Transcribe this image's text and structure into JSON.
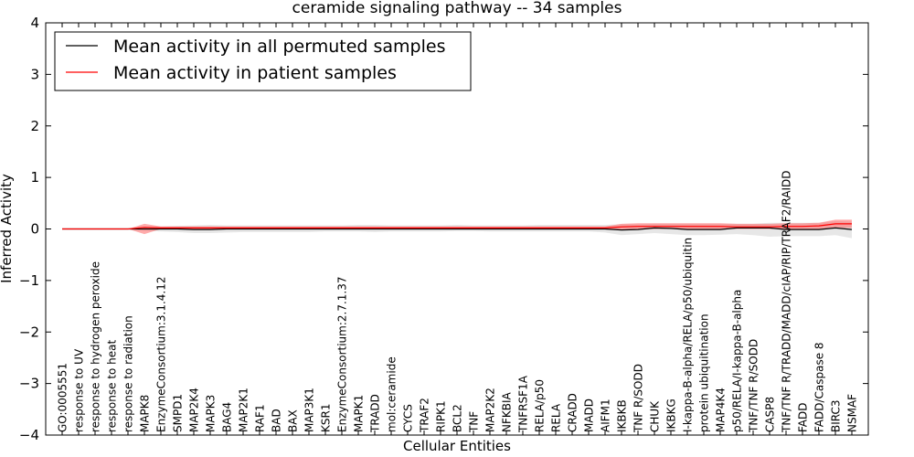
{
  "chart_data": {
    "type": "line",
    "title": "ceramide signaling pathway -- 34 samples",
    "xlabel": "Cellular Entities",
    "ylabel": "Inferred Activity",
    "ylim": [
      -4,
      4
    ],
    "yticks": [
      -4,
      -3,
      -2,
      -1,
      0,
      1,
      2,
      3,
      4
    ],
    "ytick_labels": [
      "−4",
      "−3",
      "−2",
      "−1",
      "0",
      "1",
      "2",
      "3",
      "4"
    ],
    "grid": false,
    "legend_position": "top-left",
    "categories": [
      "GO:0005551",
      "response to UV",
      "response to hydrogen peroxide",
      "response to heat",
      "response to radiation",
      "MAPK8",
      "EnzymeConsortium:3.1.4.12",
      "SMPD1",
      "MAP2K4",
      "MAPK3",
      "BAG4",
      "MAP2K1",
      "RAF1",
      "BAD",
      "BAX",
      "MAP3K1",
      "KSR1",
      "EnzymeConsortium:2.7.1.37",
      "MAPK1",
      "TRADD",
      "mol:ceramide",
      "CYCS",
      "TRAF2",
      "RIPK1",
      "BCL2",
      "TNF",
      "MAP2K2",
      "NFKBIA",
      "TNFRSF1A",
      "RELA/p50",
      "RELA",
      "CRADD",
      "MADD",
      "AIFM1",
      "IKBKB",
      "TNF R/SODD",
      "CHUK",
      "IKBKG",
      "I-kappa-B-alpha/RELA/p50/ubiquitin",
      "protein ubiquitination",
      "MAP4K4",
      "p50/RELA/I-kappa-B-alpha",
      "TNF/TNF R/SODD",
      "CASP8",
      "TNF/TNF R/TRADD/MADD/cIAP/RIP/TRAF2/RAIDD",
      "FADD",
      "FADD/Caspase 8",
      "BIRC3",
      "NSMAF"
    ],
    "series": [
      {
        "name": "Mean activity in all permuted samples",
        "color": "#000000",
        "values": [
          0,
          0,
          0,
          0,
          0,
          0.0,
          0.0,
          0.0,
          -0.01,
          -0.01,
          0.0,
          0.0,
          0.0,
          0.0,
          0.0,
          0.0,
          0.0,
          0.0,
          0.0,
          0.0,
          0.0,
          0.0,
          0.0,
          0.0,
          0.0,
          0.0,
          0.0,
          0.0,
          0.0,
          0.0,
          0.0,
          0.0,
          0.0,
          0.0,
          -0.02,
          -0.01,
          0.02,
          0.01,
          -0.01,
          -0.01,
          -0.01,
          0.02,
          0.02,
          0.02,
          -0.01,
          -0.01,
          -0.01,
          0.02,
          -0.01
        ],
        "band_lower": [
          0,
          0,
          0,
          0,
          0,
          -0.03,
          -0.05,
          -0.06,
          -0.08,
          -0.08,
          -0.07,
          -0.06,
          -0.06,
          -0.06,
          -0.06,
          -0.06,
          -0.05,
          -0.05,
          -0.05,
          -0.06,
          -0.05,
          -0.05,
          -0.05,
          -0.05,
          -0.04,
          -0.04,
          -0.05,
          -0.05,
          -0.05,
          -0.05,
          -0.05,
          -0.05,
          -0.05,
          -0.07,
          -0.12,
          -0.1,
          -0.08,
          -0.1,
          -0.12,
          -0.12,
          -0.11,
          -0.1,
          -0.12,
          -0.15,
          -0.14,
          -0.14,
          -0.14,
          -0.12,
          -0.18
        ],
        "band_upper": [
          0,
          0,
          0,
          0,
          0,
          0.03,
          0.05,
          0.06,
          0.07,
          0.08,
          0.07,
          0.07,
          0.07,
          0.07,
          0.07,
          0.07,
          0.07,
          0.07,
          0.08,
          0.08,
          0.07,
          0.07,
          0.07,
          0.07,
          0.08,
          0.07,
          0.07,
          0.07,
          0.07,
          0.08,
          0.08,
          0.08,
          0.08,
          0.08,
          0.09,
          0.09,
          0.1,
          0.1,
          0.1,
          0.1,
          0.1,
          0.1,
          0.1,
          0.12,
          0.12,
          0.12,
          0.12,
          0.15,
          0.14
        ],
        "band_color": "#bbbbbb"
      },
      {
        "name": "Mean activity in patient samples",
        "color": "#ff0000",
        "values": [
          0,
          0,
          0,
          0,
          0,
          0.03,
          0.02,
          0.02,
          0.02,
          0.02,
          0.02,
          0.02,
          0.02,
          0.02,
          0.02,
          0.02,
          0.02,
          0.02,
          0.02,
          0.02,
          0.02,
          0.02,
          0.02,
          0.02,
          0.02,
          0.02,
          0.02,
          0.02,
          0.02,
          0.02,
          0.02,
          0.02,
          0.02,
          0.02,
          0.04,
          0.05,
          0.05,
          0.05,
          0.05,
          0.05,
          0.05,
          0.04,
          0.04,
          0.04,
          0.05,
          0.05,
          0.06,
          0.1,
          0.1
        ],
        "band_lower": [
          0,
          0,
          0,
          0,
          0,
          -0.1,
          0.0,
          0.0,
          0.0,
          0.0,
          0.0,
          0.0,
          0.0,
          0.0,
          0.0,
          0.0,
          0.0,
          0.0,
          0.0,
          0.0,
          0.0,
          0.0,
          0.0,
          0.0,
          0.0,
          0.0,
          0.0,
          0.0,
          0.0,
          0.0,
          0.0,
          0.0,
          0.0,
          0.0,
          -0.01,
          -0.01,
          0.0,
          0.0,
          0.0,
          0.0,
          0.0,
          0.0,
          0.0,
          0.0,
          0.0,
          0.0,
          0.0,
          0.02,
          0.02
        ],
        "band_upper": [
          0,
          0,
          0,
          0,
          0,
          0.1,
          0.05,
          0.05,
          0.05,
          0.05,
          0.05,
          0.05,
          0.05,
          0.05,
          0.05,
          0.05,
          0.05,
          0.05,
          0.05,
          0.05,
          0.05,
          0.05,
          0.05,
          0.05,
          0.05,
          0.05,
          0.05,
          0.05,
          0.05,
          0.05,
          0.05,
          0.05,
          0.05,
          0.05,
          0.1,
          0.11,
          0.11,
          0.11,
          0.11,
          0.11,
          0.11,
          0.1,
          0.1,
          0.1,
          0.11,
          0.11,
          0.12,
          0.18,
          0.18
        ],
        "band_color": "#ff6666"
      }
    ]
  }
}
